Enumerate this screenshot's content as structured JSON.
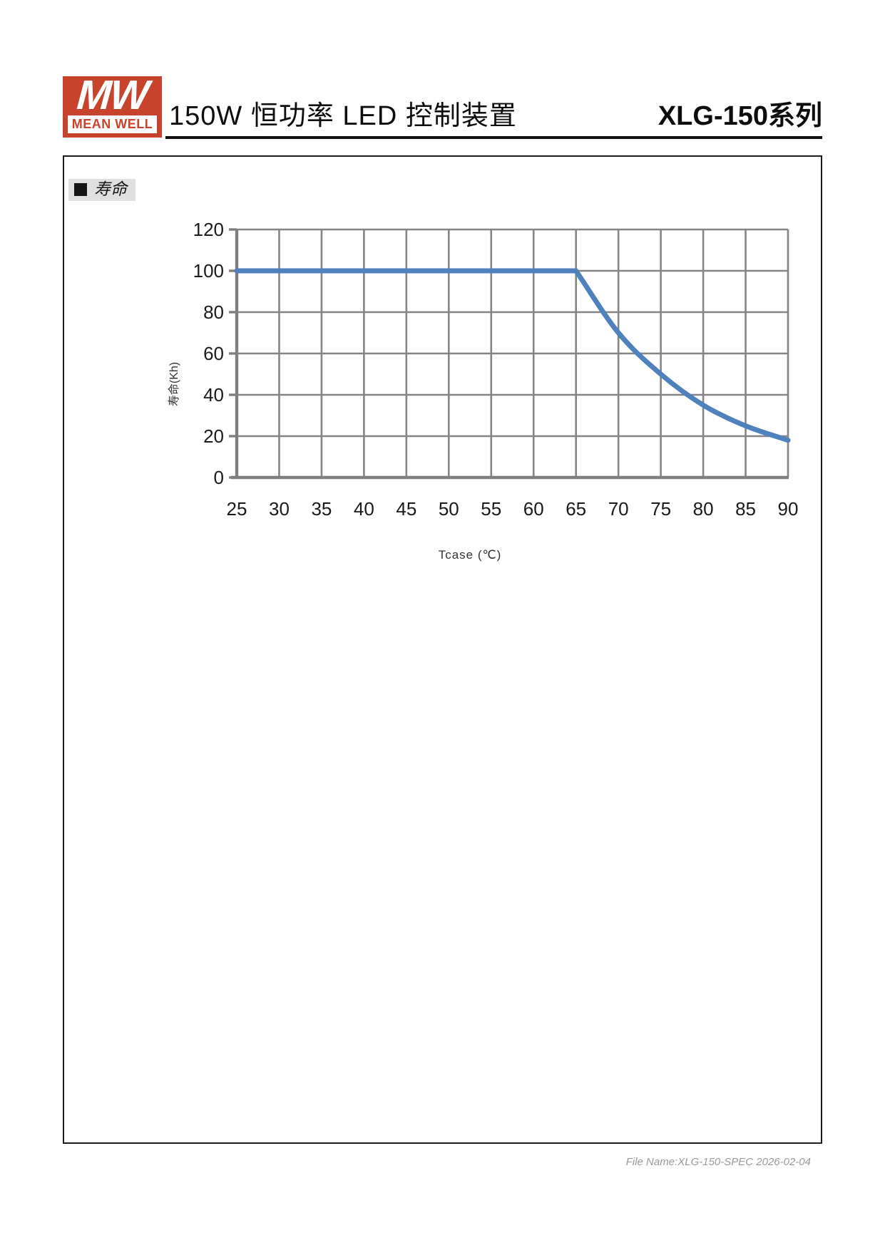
{
  "header": {
    "logo": {
      "monogram": "MW",
      "brand": "MEAN WELL"
    },
    "title": "150W 恒功率 LED 控制装置",
    "series": "XLG-150系列"
  },
  "section": {
    "label": "寿命"
  },
  "chart_data": {
    "type": "line",
    "title": "",
    "x": [
      25,
      30,
      35,
      40,
      45,
      50,
      55,
      60,
      65,
      70,
      75,
      80,
      85,
      90
    ],
    "series": [
      {
        "name": "寿命",
        "values": [
          100,
          100,
          100,
          100,
          100,
          100,
          100,
          100,
          100,
          70,
          50,
          35,
          25,
          18
        ]
      }
    ],
    "xlabel": "Tcase (℃)",
    "ylabel": "寿命(Kh)",
    "xlim": [
      25,
      90
    ],
    "ylim": [
      0,
      120
    ],
    "x_ticks": [
      25,
      30,
      35,
      40,
      45,
      50,
      55,
      60,
      65,
      70,
      75,
      80,
      85,
      90
    ],
    "y_ticks": [
      0,
      20,
      40,
      60,
      80,
      100,
      120
    ],
    "grid": true,
    "legend": "none",
    "line_color": "#4F81BD",
    "grid_color": "#858585",
    "axis_color": "#7F7F7F",
    "tick_label_color": "#1a1a1a"
  },
  "footer": {
    "file_info": "File Name:XLG-150-SPEC 2026-02-04"
  }
}
